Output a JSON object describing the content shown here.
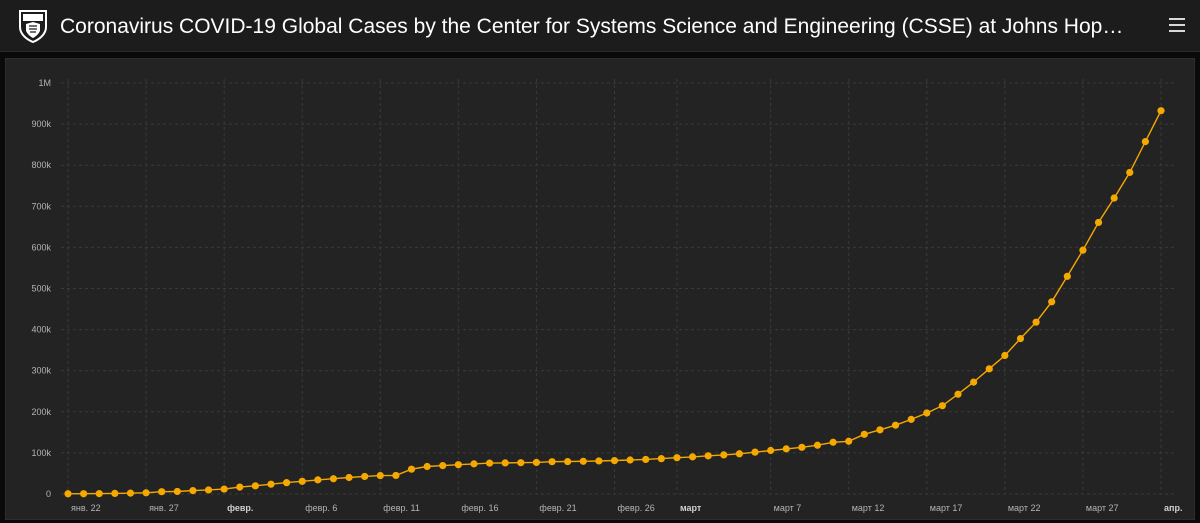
{
  "header": {
    "title": "Coronavirus COVID-19 Global Cases by the Center for Systems Science and Engineering (CSSE) at Johns Hop…",
    "logo_icon": "shield-crest-icon",
    "menu_icon": "hamburger-menu-icon"
  },
  "colors": {
    "background": "#0a0a0a",
    "header": "#1c1c1c",
    "panel": "#232323",
    "grid": "#3a3a3a",
    "series": "#f5a800"
  },
  "chart_data": {
    "type": "line",
    "markers": true,
    "grid": true,
    "grid_style": "dashed",
    "ylim": [
      0,
      1000000
    ],
    "y_ticks": [
      {
        "value": 0,
        "label": "0"
      },
      {
        "value": 100000,
        "label": "100k"
      },
      {
        "value": 200000,
        "label": "200k"
      },
      {
        "value": 300000,
        "label": "300k"
      },
      {
        "value": 400000,
        "label": "400k"
      },
      {
        "value": 500000,
        "label": "500k"
      },
      {
        "value": 600000,
        "label": "600k"
      },
      {
        "value": 700000,
        "label": "700k"
      },
      {
        "value": 800000,
        "label": "800k"
      },
      {
        "value": 900000,
        "label": "900k"
      },
      {
        "value": 1000000,
        "label": "1M"
      }
    ],
    "x_ticks": [
      {
        "index": 0,
        "label": "янв. 22",
        "bold": false
      },
      {
        "index": 5,
        "label": "янв. 27",
        "bold": false
      },
      {
        "index": 10,
        "label": "февр.",
        "bold": true
      },
      {
        "index": 15,
        "label": "февр. 6",
        "bold": false
      },
      {
        "index": 20,
        "label": "февр. 11",
        "bold": false
      },
      {
        "index": 25,
        "label": "февр. 16",
        "bold": false
      },
      {
        "index": 30,
        "label": "февр. 21",
        "bold": false
      },
      {
        "index": 35,
        "label": "февр. 26",
        "bold": false
      },
      {
        "index": 39,
        "label": "март",
        "bold": true
      },
      {
        "index": 45,
        "label": "март 7",
        "bold": false
      },
      {
        "index": 50,
        "label": "март 12",
        "bold": false
      },
      {
        "index": 55,
        "label": "март 17",
        "bold": false
      },
      {
        "index": 60,
        "label": "март 22",
        "bold": false
      },
      {
        "index": 65,
        "label": "март 27",
        "bold": false
      },
      {
        "index": 70,
        "label": "апр.",
        "bold": true
      }
    ],
    "series": [
      {
        "color": "#f5a800",
        "values": [
          555,
          654,
          941,
          1434,
          2118,
          2927,
          5578,
          6166,
          8234,
          9927,
          12038,
          16787,
          19881,
          23892,
          27635,
          30794,
          34391,
          37120,
          40150,
          42762,
          44802,
          45221,
          60368,
          66885,
          69030,
          71224,
          73258,
          75136,
          75639,
          76197,
          76823,
          78579,
          78965,
          79568,
          80413,
          81395,
          82754,
          84120,
          86011,
          88369,
          90306,
          92840,
          95120,
          97886,
          101801,
          105847,
          109821,
          113590,
          118620,
          125875,
          128343,
          145193,
          156097,
          167449,
          181546,
          197168,
          214915,
          242713,
          272167,
          304528,
          336953,
          378235,
          418045,
          467653,
          529591,
          593291,
          660706,
          720117,
          782365,
          857487,
          932605
        ]
      }
    ]
  }
}
